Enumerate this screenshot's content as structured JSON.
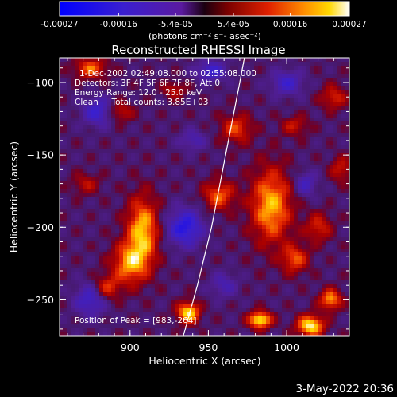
{
  "colorbar": {
    "tick_labels": [
      "-0.00027",
      "-0.00016",
      "-5.4e-05",
      "5.4e-05",
      "0.00016",
      "0.00027"
    ],
    "tick_values": [
      -0.00027,
      -0.00016,
      -5.4e-05,
      5.4e-05,
      0.00016,
      0.00027
    ],
    "range": [
      -0.00027,
      0.00027
    ],
    "units": "(photons cm⁻² s⁻¹ asec⁻²)"
  },
  "title": "Reconstructed RHESSI Image",
  "info": {
    "line1": "1-Dec-2002 02:49:08.000 to 02:55:08.000",
    "line2": "Detectors: 3F 4F 5F 6F 7F 8F, Att 0",
    "line3": "Energy Range: 12.0 - 25.0 keV",
    "line4": "Clean     Total counts: 3.85E+03"
  },
  "peak_text": "Position of Peak = [983,-264]",
  "footer_date": "3-May-2022 20:36",
  "chart_data": {
    "type": "heatmap",
    "title": "Reconstructed RHESSI Image",
    "xlabel": "Heliocentric X (arcsec)",
    "ylabel": "Heliocentric Y (arcsec)",
    "xlim": [
      855,
      1040
    ],
    "ylim": [
      -275,
      -83
    ],
    "xticks": [
      900,
      950,
      1000
    ],
    "yticks": [
      -100,
      -150,
      -200,
      -250
    ],
    "colormap": "rhessi-blue-purple-red-yellow-white",
    "color_range": [
      -0.00027,
      0.00027
    ],
    "peak_position": [
      983,
      -264
    ],
    "limb_curve": {
      "x": [
        934,
        943,
        952,
        961,
        970,
        973
      ],
      "y": [
        -275,
        -240,
        -200,
        -150,
        -100,
        -83
      ]
    },
    "blobs": [
      {
        "x": 875,
        "y": -90,
        "sx": 7,
        "sy": 5,
        "v": 0.00016
      },
      {
        "x": 893,
        "y": -120,
        "sx": 6,
        "sy": 5,
        "v": 0.00012
      },
      {
        "x": 908,
        "y": -202,
        "sx": 7,
        "sy": 16,
        "v": 0.00022
      },
      {
        "x": 900,
        "y": -225,
        "sx": 8,
        "sy": 10,
        "v": 0.00019
      },
      {
        "x": 885,
        "y": -242,
        "sx": 6,
        "sy": 6,
        "v": 0.00014
      },
      {
        "x": 937,
        "y": -259,
        "sx": 5,
        "sy": 5,
        "v": 0.00025
      },
      {
        "x": 957,
        "y": -178,
        "sx": 7,
        "sy": 7,
        "v": 0.00016
      },
      {
        "x": 968,
        "y": -132,
        "sx": 7,
        "sy": 7,
        "v": 0.00014
      },
      {
        "x": 990,
        "y": -185,
        "sx": 9,
        "sy": 18,
        "v": 0.00021
      },
      {
        "x": 1005,
        "y": -222,
        "sx": 6,
        "sy": 7,
        "v": 0.00015
      },
      {
        "x": 1020,
        "y": -200,
        "sx": 6,
        "sy": 7,
        "v": 0.00012
      },
      {
        "x": 983,
        "y": -264,
        "sx": 5,
        "sy": 4,
        "v": 0.00027
      },
      {
        "x": 1015,
        "y": -268,
        "sx": 6,
        "sy": 5,
        "v": 0.00026
      },
      {
        "x": 1028,
        "y": -250,
        "sx": 5,
        "sy": 5,
        "v": 0.0002
      },
      {
        "x": 1030,
        "y": -110,
        "sx": 6,
        "sy": 6,
        "v": 0.00012
      },
      {
        "x": 1035,
        "y": -160,
        "sx": 5,
        "sy": 6,
        "v": 0.00011
      },
      {
        "x": 1005,
        "y": -130,
        "sx": 6,
        "sy": 5,
        "v": 0.0001
      },
      {
        "x": 872,
        "y": -170,
        "sx": 6,
        "sy": 5,
        "v": 9e-05
      },
      {
        "x": 928,
        "y": -105,
        "sx": 5,
        "sy": 4,
        "v": 0.0001
      },
      {
        "x": 880,
        "y": -120,
        "sx": 7,
        "sy": 7,
        "v": -0.00016
      },
      {
        "x": 935,
        "y": -200,
        "sx": 8,
        "sy": 9,
        "v": -0.0002
      },
      {
        "x": 952,
        "y": -92,
        "sx": 7,
        "sy": 5,
        "v": -0.00015
      },
      {
        "x": 1000,
        "y": -100,
        "sx": 7,
        "sy": 6,
        "v": -0.00014
      },
      {
        "x": 875,
        "y": -250,
        "sx": 7,
        "sy": 8,
        "v": -0.00015
      },
      {
        "x": 1012,
        "y": -170,
        "sx": 5,
        "sy": 6,
        "v": -0.00012
      },
      {
        "x": 940,
        "y": -140,
        "sx": 6,
        "sy": 5,
        "v": -0.0001
      },
      {
        "x": 960,
        "y": -240,
        "sx": 6,
        "sy": 6,
        "v": -0.0001
      }
    ]
  }
}
